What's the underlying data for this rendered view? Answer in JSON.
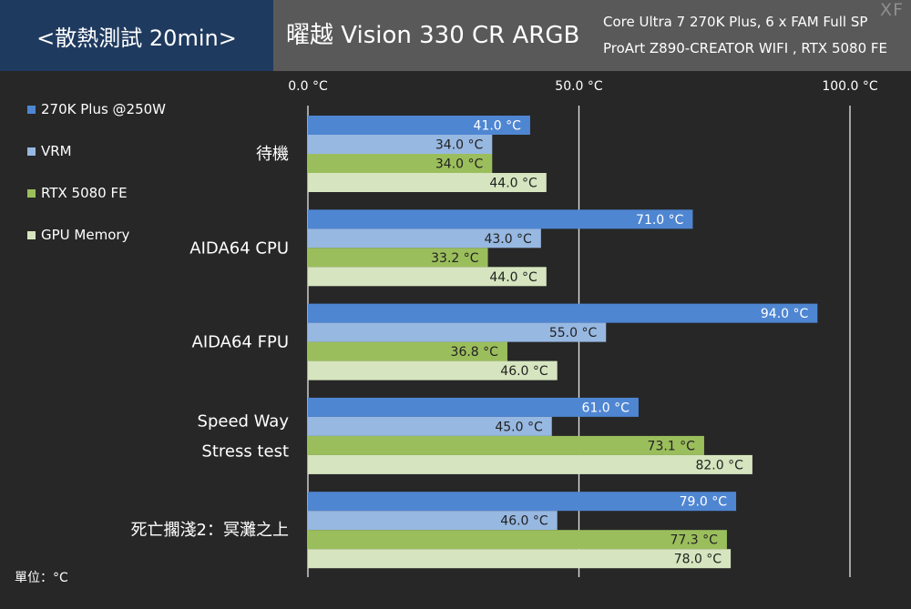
{
  "header": {
    "test_title": "<散熱測試 20min>",
    "product": "曜越 Vision 330 CR ARGB",
    "spec_line1": "Core Ultra 7 270K Plus, 6 x FAM Full SP",
    "spec_line2": "ProArt Z890-CREATOR WIFI , RTX 5080 FE",
    "watermark": "XF"
  },
  "unit_note": "單位：°C",
  "colors": {
    "header_left_bg": "#1f3a5f",
    "header_right_bg": "#595959",
    "background": "#272727",
    "gridline": "#e6e6e6"
  },
  "chart_data": {
    "type": "bar",
    "orientation": "horizontal",
    "categories": [
      "待機",
      "AIDA64 CPU",
      "AIDA64 FPU",
      "Speed Way\nStress test",
      "死亡擱淺2：冥灘之上"
    ],
    "series": [
      {
        "name": "270K Plus @250W",
        "color": "#4f86d2",
        "values": [
          41.0,
          71.0,
          94.0,
          61.0,
          79.0
        ],
        "labels": [
          "41.0 °C",
          "71.0 °C",
          "94.0 °C",
          "61.0 °C",
          "79.0 °C"
        ]
      },
      {
        "name": "VRM",
        "color": "#97b8e1",
        "values": [
          34.0,
          43.0,
          55.0,
          45.0,
          46.0
        ],
        "labels": [
          "34.0 °C",
          "43.0 °C",
          "55.0 °C",
          "45.0 °C",
          "46.0 °C"
        ]
      },
      {
        "name": "RTX 5080 FE",
        "color": "#9bbe5c",
        "values": [
          34.0,
          33.2,
          36.8,
          73.1,
          77.3
        ],
        "labels": [
          "34.0 °C",
          "33.2 °C",
          "36.8 °C",
          "73.1 °C",
          "77.3 °C"
        ]
      },
      {
        "name": "GPU Memory",
        "color": "#d6e5bf",
        "values": [
          44.0,
          44.0,
          46.0,
          82.0,
          78.0
        ],
        "labels": [
          "44.0 °C",
          "44.0 °C",
          "46.0 °C",
          "82.0 °C",
          "78.0 °C"
        ]
      }
    ],
    "xlim": [
      0,
      100
    ],
    "ticks": [
      0,
      50,
      100
    ],
    "tick_labels": [
      "0.0 °C",
      "50.0 °C",
      "100.0 °C"
    ],
    "legend_position": "left",
    "grid": true
  }
}
